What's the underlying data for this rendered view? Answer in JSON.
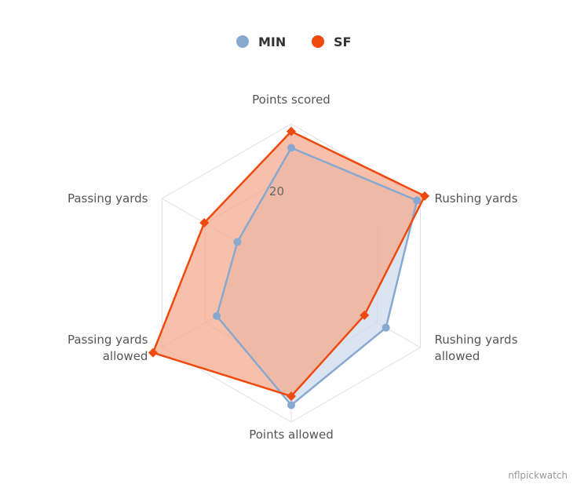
{
  "chart_data": {
    "type": "radar",
    "axes": [
      "Points scored",
      "Rushing yards",
      "Rushing yards allowed",
      "Points allowed",
      "Passing yards allowed",
      "Passing yards"
    ],
    "axis_label_lines": [
      [
        "Points scored"
      ],
      [
        "Rushing yards"
      ],
      [
        "Rushing yards",
        "allowed"
      ],
      [
        "Points allowed"
      ],
      [
        "Passing yards",
        "allowed"
      ],
      [
        "Passing yards"
      ]
    ],
    "series": [
      {
        "name": "MIN",
        "color": "#87a9d0",
        "fill": "#cfdcec",
        "marker": "circle",
        "values": [
          25.2,
          29.2,
          22.0,
          26.6,
          17.3,
          12.5
        ]
      },
      {
        "name": "SF",
        "color": "#ee4a0e",
        "fill": "#f5a98e",
        "marker": "diamond",
        "values": [
          28.5,
          31.0,
          17.0,
          24.8,
          32.1,
          20.2
        ]
      }
    ],
    "range": [
      0,
      30
    ],
    "ticks": [
      {
        "value": 20,
        "label": "20"
      }
    ],
    "grid_levels": [
      10,
      20,
      30
    ],
    "legend_position": "top-center",
    "credit": "nflpickwatch"
  }
}
